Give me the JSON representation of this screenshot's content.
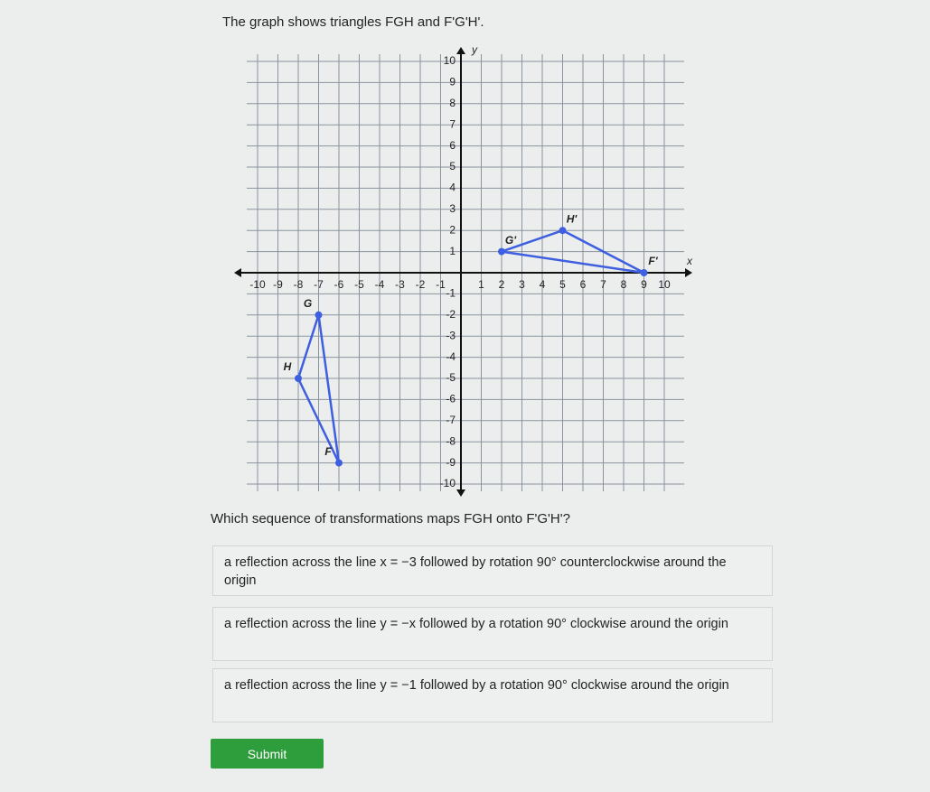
{
  "prompt": "The graph shows triangles FGH and F'G'H'.",
  "graph": {
    "x_label": "x",
    "y_label": "y",
    "xlim": [
      -10,
      10
    ],
    "ylim": [
      -10,
      10
    ],
    "xticks": [
      -10,
      -9,
      -8,
      -7,
      -6,
      -5,
      -4,
      -3,
      -2,
      -1,
      1,
      2,
      3,
      4,
      5,
      6,
      7,
      8,
      9,
      10
    ],
    "yticks": [
      -10,
      -9,
      -8,
      -7,
      -6,
      -5,
      -4,
      -3,
      -2,
      -1,
      1,
      2,
      3,
      4,
      5,
      6,
      7,
      8,
      9,
      10
    ],
    "color": "#3d5fe0",
    "triangles": [
      {
        "points": [
          {
            "label": "F",
            "x": -6,
            "y": -9
          },
          {
            "label": "G",
            "x": -7,
            "y": -2
          },
          {
            "label": "H",
            "x": -8,
            "y": -5
          }
        ]
      },
      {
        "points": [
          {
            "label": "F'",
            "x": 9,
            "y": 0
          },
          {
            "label": "G'",
            "x": 2,
            "y": 1
          },
          {
            "label": "H'",
            "x": 5,
            "y": 2
          }
        ]
      }
    ]
  },
  "question": "Which sequence of transformations maps FGH onto F'G'H'?",
  "choices": [
    "a reflection across the line x = −3 followed by rotation 90° counterclockwise around the origin",
    "a reflection across the line y = −x followed by a rotation 90° clockwise around the origin",
    "a reflection across the line y = −1 followed by a rotation 90° clockwise around the origin"
  ],
  "submit": "Submit"
}
